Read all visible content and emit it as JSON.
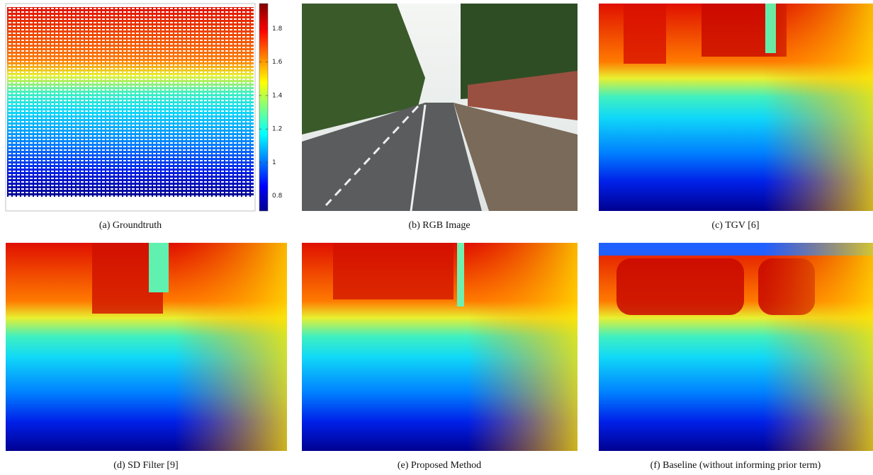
{
  "figure": {
    "panels": [
      {
        "caption": "(a) Groundtruth"
      },
      {
        "caption": "(b) RGB Image"
      },
      {
        "caption": "(c) TGV [6]"
      },
      {
        "caption": "(d) SD Filter [9]"
      },
      {
        "caption": "(e) Proposed Method"
      },
      {
        "caption": "(f) Baseline (without informing prior term)"
      }
    ],
    "colorbar": {
      "range": [
        0.71,
        1.95
      ],
      "ticks": [
        0.8,
        1,
        1.2,
        1.4,
        1.6,
        1.8
      ]
    }
  }
}
